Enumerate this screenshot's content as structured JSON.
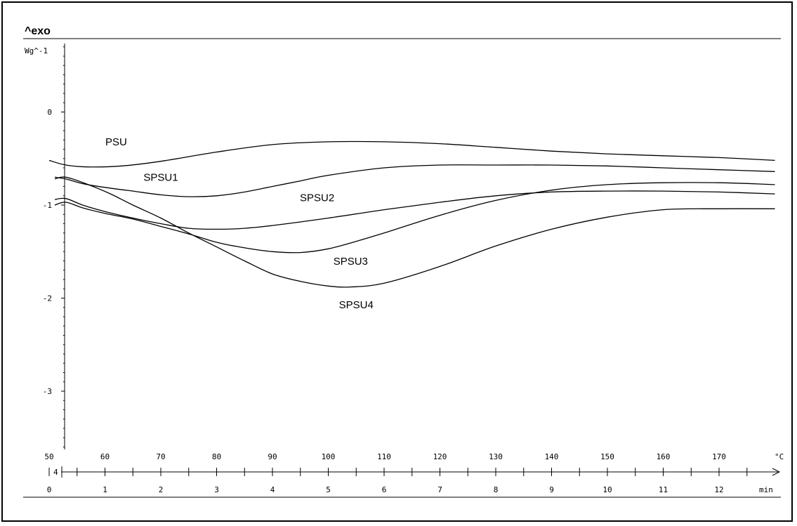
{
  "chart_data": {
    "type": "line",
    "corner_label": "^exo",
    "y_unit": "Wg^-1",
    "x_unit": "°C",
    "x2_unit": "min",
    "xlim": [
      50,
      180
    ],
    "ylim": [
      -4,
      1
    ],
    "x_ticks": [
      50,
      60,
      70,
      80,
      90,
      100,
      110,
      120,
      130,
      140,
      150,
      160,
      170
    ],
    "x_tick_labels": [
      "50",
      "60",
      "70",
      "80",
      "90",
      "100",
      "110",
      "120",
      "130",
      "140",
      "150",
      "160",
      "170"
    ],
    "y_ticks": [
      0,
      -1,
      -2,
      -3
    ],
    "y_tick_labels": [
      "0",
      "-1",
      "-2",
      "-3"
    ],
    "time_ticks": [
      0,
      1,
      2,
      3,
      4,
      5,
      6,
      7,
      8,
      9,
      10,
      11,
      12
    ],
    "time_tick_labels": [
      "0",
      "1",
      "2",
      "3",
      "4",
      "5",
      "6",
      "7",
      "8",
      "9",
      "10",
      "11",
      "12"
    ],
    "axis_origin_label": "4",
    "grid": false,
    "line_color": "#000000",
    "series": [
      {
        "name": "PSU",
        "x": [
          50,
          53,
          57,
          63,
          70,
          80,
          90,
          100,
          110,
          120,
          130,
          140,
          150,
          160,
          170,
          180
        ],
        "y": [
          -0.52,
          -0.57,
          -0.59,
          -0.58,
          -0.53,
          -0.43,
          -0.35,
          -0.32,
          -0.32,
          -0.34,
          -0.38,
          -0.42,
          -0.45,
          -0.47,
          -0.49,
          -0.52
        ]
      },
      {
        "name": "SPSU1",
        "x": [
          51,
          53,
          56,
          60,
          65,
          70,
          75,
          80,
          85,
          90,
          95,
          100,
          110,
          120,
          130,
          140,
          150,
          160,
          170,
          180
        ],
        "y": [
          -0.7,
          -0.72,
          -0.77,
          -0.81,
          -0.85,
          -0.89,
          -0.91,
          -0.9,
          -0.86,
          -0.8,
          -0.74,
          -0.68,
          -0.6,
          -0.57,
          -0.57,
          -0.57,
          -0.58,
          -0.6,
          -0.62,
          -0.64
        ]
      },
      {
        "name": "SPSU2",
        "x": [
          51,
          53,
          56,
          60,
          65,
          70,
          75,
          80,
          85,
          90,
          100,
          110,
          120,
          130,
          140,
          150,
          160,
          170,
          180
        ],
        "y": [
          -0.94,
          -0.93,
          -1.0,
          -1.07,
          -1.14,
          -1.2,
          -1.25,
          -1.26,
          -1.25,
          -1.22,
          -1.14,
          -1.05,
          -0.97,
          -0.9,
          -0.86,
          -0.85,
          -0.85,
          -0.86,
          -0.88
        ]
      },
      {
        "name": "SPSU3",
        "x": [
          51,
          53,
          56,
          60,
          65,
          70,
          75,
          80,
          85,
          90,
          95,
          100,
          105,
          110,
          120,
          130,
          140,
          150,
          160,
          170,
          180
        ],
        "y": [
          -1.0,
          -0.97,
          -1.03,
          -1.09,
          -1.15,
          -1.23,
          -1.31,
          -1.4,
          -1.46,
          -1.5,
          -1.51,
          -1.47,
          -1.39,
          -1.3,
          -1.11,
          -0.95,
          -0.84,
          -0.78,
          -0.76,
          -0.76,
          -0.78
        ]
      },
      {
        "name": "SPSU4",
        "x": [
          51,
          53,
          57,
          61,
          65,
          70,
          75,
          80,
          85,
          90,
          95,
          100,
          104,
          110,
          120,
          130,
          140,
          150,
          160,
          170,
          180
        ],
        "y": [
          -0.72,
          -0.7,
          -0.78,
          -0.88,
          -1.0,
          -1.14,
          -1.3,
          -1.45,
          -1.6,
          -1.74,
          -1.82,
          -1.87,
          -1.88,
          -1.84,
          -1.66,
          -1.44,
          -1.26,
          -1.13,
          -1.05,
          -1.04,
          -1.04
        ]
      }
    ]
  }
}
